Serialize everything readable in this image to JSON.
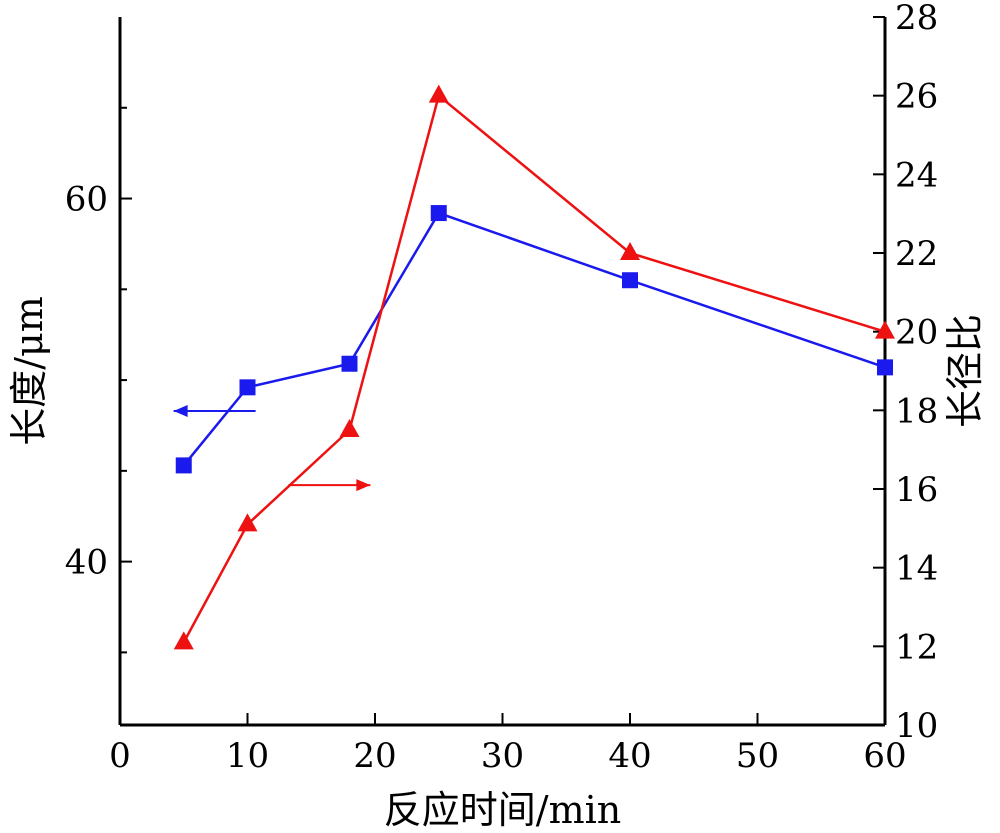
{
  "chart_data": {
    "type": "line",
    "xlabel": "反应时间/min",
    "ylabel_left": "长度/μm",
    "ylabel_right": "长径比",
    "xlim": [
      0,
      60
    ],
    "x_ticks": [
      0,
      10,
      20,
      30,
      40,
      50,
      60
    ],
    "ylim_left": [
      31,
      70
    ],
    "y_ticks_left": [
      40,
      60
    ],
    "ylim_right": [
      10,
      28
    ],
    "y_ticks_right": [
      10,
      12,
      14,
      16,
      18,
      20,
      22,
      24,
      26,
      28
    ],
    "grid": false,
    "series": [
      {
        "axis": "left",
        "marker": "square",
        "color": "#1a1aee",
        "x": [
          5,
          10,
          18,
          25,
          40,
          60
        ],
        "values": [
          45.3,
          49.6,
          50.9,
          59.2,
          55.5,
          50.7
        ]
      },
      {
        "axis": "right",
        "marker": "triangle",
        "color": "#ee1111",
        "x": [
          5,
          10,
          18,
          25,
          40,
          60
        ],
        "values": [
          12.1,
          15.1,
          17.5,
          26.0,
          22.0,
          20.0
        ]
      }
    ],
    "annotations": [
      {
        "type": "arrow",
        "direction": "left",
        "color": "#1a1aee",
        "refers_to": "series-1"
      },
      {
        "type": "arrow",
        "direction": "right",
        "color": "#ee1111",
        "refers_to": "series-2"
      }
    ]
  }
}
